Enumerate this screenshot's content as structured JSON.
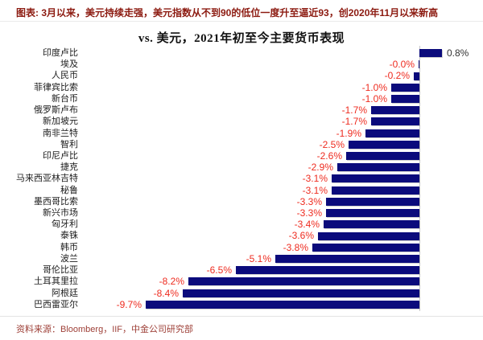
{
  "header": {
    "caption": "图表: 3月以来，美元持续走强，美元指数从不到90的低位一度升至逼近93，创2020年11月以来新高"
  },
  "chart_data": {
    "type": "bar",
    "orientation": "horizontal",
    "title": "vs. 美元，2021年初至今主要货币表现",
    "value_unit": "%",
    "xlim": [
      -10.5,
      2.3
    ],
    "grid": "off",
    "legend": "none",
    "categories": [
      "印度卢比",
      "埃及",
      "人民币",
      "菲律宾比索",
      "新台币",
      "俄罗斯卢布",
      "新加坡元",
      "南非兰特",
      "智利",
      "印尼卢比",
      "捷克",
      "马来西亚林吉特",
      "秘鲁",
      "墨西哥比索",
      "新兴市场",
      "匈牙利",
      "泰铢",
      "韩币",
      "波兰",
      "哥伦比亚",
      "土耳其里拉",
      "阿根廷",
      "巴西雷亚尔"
    ],
    "values": [
      0.8,
      -0.0,
      -0.2,
      -1.0,
      -1.0,
      -1.7,
      -1.7,
      -1.9,
      -2.5,
      -2.6,
      -2.9,
      -3.1,
      -3.1,
      -3.3,
      -3.3,
      -3.4,
      -3.6,
      -3.8,
      -5.1,
      -6.5,
      -8.2,
      -8.4,
      -9.7
    ],
    "value_labels": [
      "0.8%",
      "-0.0%",
      "-0.2%",
      "-1.0%",
      "-1.0%",
      "-1.7%",
      "-1.7%",
      "-1.9%",
      "-2.5%",
      "-2.6%",
      "-2.9%",
      "-3.1%",
      "-3.1%",
      "-3.3%",
      "-3.3%",
      "-3.4%",
      "-3.6%",
      "-3.8%",
      "-5.1%",
      "-6.5%",
      "-8.2%",
      "-8.4%",
      "-9.7%"
    ],
    "colors": {
      "bar": "#0b0b7c",
      "negative_label": "#ee2c20",
      "positive_label": "#333333",
      "axis_line": "#c9c9c9"
    }
  },
  "footer": {
    "source": "资料来源：Bloomberg，IIF，中金公司研究部"
  }
}
